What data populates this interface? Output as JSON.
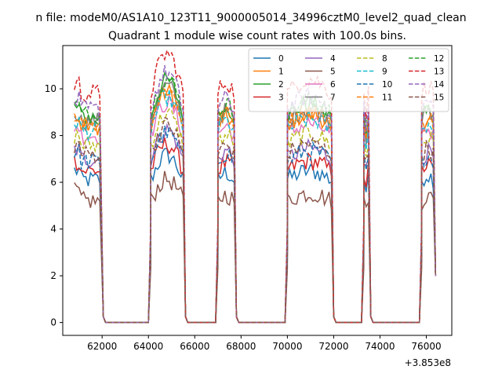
{
  "chart_data": {
    "type": "line",
    "suptitle": "n file: modeM0/AS1A10_123T11_9000005014_34996cztM0_level2_quad_clean",
    "title": "Quadrant 1 module wise count rates with 100.0s bins.",
    "xlabel": "",
    "ylabel": "",
    "x_offset_label": "+3.853e8",
    "xlim": [
      60300,
      77100
    ],
    "ylim": [
      -0.55,
      11.85
    ],
    "x_ticks": [
      62000,
      64000,
      66000,
      68000,
      70000,
      72000,
      74000,
      76000
    ],
    "x_tick_labels": [
      "62000",
      "64000",
      "66000",
      "68000",
      "70000",
      "72000",
      "74000",
      "76000"
    ],
    "y_ticks": [
      0,
      2,
      4,
      6,
      8,
      10
    ],
    "y_tick_labels": [
      "0",
      "2",
      "4",
      "6",
      "8",
      "10"
    ],
    "grid": false,
    "legend_position": "top-right",
    "legend_columns": 4,
    "segments": [
      {
        "start": 60800,
        "end": 61950
      },
      {
        "start": 64100,
        "end": 65500
      },
      {
        "start": 67000,
        "end": 67700
      },
      {
        "start": 70000,
        "end": 71900
      },
      {
        "start": 73300,
        "end": 73500
      },
      {
        "start": 75800,
        "end": 76300
      }
    ],
    "gap_end": 76400,
    "gap_end_value": 2.0,
    "series": [
      {
        "name": "0",
        "color": "#1f77b4",
        "dash": "solid",
        "level": 6.1
      },
      {
        "name": "1",
        "color": "#ff7f0e",
        "dash": "solid",
        "level": 8.4
      },
      {
        "name": "2",
        "color": "#2ca02c",
        "dash": "solid",
        "level": 8.8
      },
      {
        "name": "3",
        "color": "#d62728",
        "dash": "solid",
        "level": 6.5
      },
      {
        "name": "4",
        "color": "#9467bd",
        "dash": "solid",
        "level": 7.0
      },
      {
        "name": "5",
        "color": "#8c564b",
        "dash": "solid",
        "level": 5.2
      },
      {
        "name": "6",
        "color": "#e377c2",
        "dash": "solid",
        "level": 8.0
      },
      {
        "name": "7",
        "color": "#7f7f7f",
        "dash": "solid",
        "level": 8.6
      },
      {
        "name": "8",
        "color": "#bcbd22",
        "dash": "dashed",
        "level": 7.6
      },
      {
        "name": "9",
        "color": "#17becf",
        "dash": "dashed",
        "level": 8.2
      },
      {
        "name": "10",
        "color": "#1f77b4",
        "dash": "dashed",
        "level": 6.9
      },
      {
        "name": "11",
        "color": "#ff7f0e",
        "dash": "dashed",
        "level": 8.5
      },
      {
        "name": "12",
        "color": "#2ca02c",
        "dash": "dashed",
        "level": 8.9
      },
      {
        "name": "13",
        "color": "#d62728",
        "dash": "dashed",
        "level": 9.8
      },
      {
        "name": "14",
        "color": "#9467bd",
        "dash": "dashed",
        "level": 9.1
      },
      {
        "name": "15",
        "color": "#8c564b",
        "dash": "dashed",
        "level": 7.2
      }
    ]
  }
}
